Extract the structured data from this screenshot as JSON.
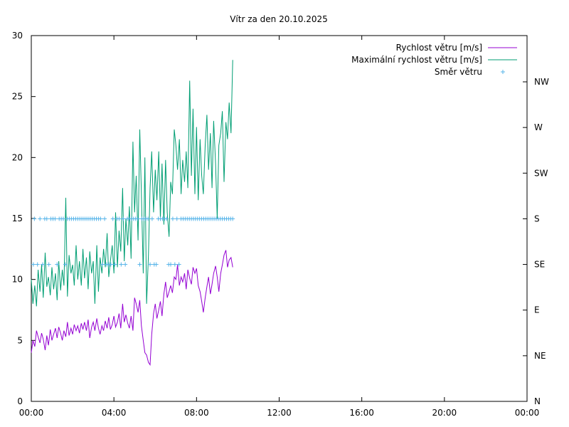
{
  "chart_data": {
    "type": "line",
    "title": "Vítr za den 20.10.2025",
    "x_ticks": [
      "00:00",
      "04:00",
      "08:00",
      "12:00",
      "16:00",
      "20:00",
      "00:00"
    ],
    "x_range_hours": [
      0,
      24
    ],
    "y_range": [
      0,
      30
    ],
    "y_ticks": [
      "0",
      "5",
      "10",
      "15",
      "20",
      "25",
      "30"
    ],
    "y2_ticks": [
      "N",
      "NE",
      "E",
      "SE",
      "S",
      "SW",
      "W",
      "NW"
    ],
    "legend_position": "top-right",
    "grid": false,
    "series": [
      {
        "name": "Rychlost větru [m/s]",
        "style": "line",
        "axis": "left",
        "color": "#9400d3",
        "x": [
          0.0,
          0.08,
          0.17,
          0.25,
          0.33,
          0.42,
          0.5,
          0.58,
          0.67,
          0.75,
          0.83,
          0.92,
          1.0,
          1.08,
          1.17,
          1.25,
          1.33,
          1.42,
          1.5,
          1.58,
          1.67,
          1.75,
          1.83,
          1.92,
          2.0,
          2.08,
          2.17,
          2.25,
          2.33,
          2.42,
          2.5,
          2.58,
          2.67,
          2.75,
          2.83,
          2.92,
          3.0,
          3.08,
          3.17,
          3.25,
          3.33,
          3.42,
          3.5,
          3.58,
          3.67,
          3.75,
          3.83,
          3.92,
          4.0,
          4.08,
          4.17,
          4.25,
          4.33,
          4.42,
          4.5,
          4.58,
          4.67,
          4.75,
          4.83,
          4.92,
          5.0,
          5.08,
          5.17,
          5.25,
          5.33,
          5.42,
          5.5,
          5.58,
          5.67,
          5.75,
          5.83,
          5.92,
          6.0,
          6.08,
          6.17,
          6.25,
          6.33,
          6.42,
          6.5,
          6.58,
          6.67,
          6.75,
          6.83,
          6.92,
          7.0,
          7.08,
          7.17,
          7.25,
          7.33,
          7.42,
          7.5,
          7.58,
          7.67,
          7.75,
          7.83,
          7.92,
          8.0,
          8.08,
          8.17,
          8.25,
          8.33,
          8.42,
          8.5,
          8.58,
          8.67,
          8.75,
          8.83,
          8.92,
          9.0,
          9.08,
          9.17,
          9.25,
          9.33,
          9.42,
          9.5,
          9.58,
          9.67,
          9.75
        ],
        "y": [
          4.0,
          5.0,
          4.5,
          5.8,
          5.3,
          4.8,
          5.6,
          5.1,
          4.2,
          5.4,
          4.6,
          5.9,
          5.0,
          5.5,
          6.0,
          5.2,
          6.1,
          5.6,
          5.0,
          5.8,
          5.3,
          6.5,
          5.4,
          6.0,
          5.5,
          6.3,
          5.8,
          6.2,
          5.6,
          6.4,
          5.9,
          6.5,
          5.8,
          6.7,
          5.2,
          6.1,
          6.5,
          5.8,
          6.8,
          6.0,
          5.5,
          6.2,
          5.8,
          6.6,
          6.0,
          6.9,
          5.9,
          6.3,
          7.0,
          6.1,
          6.5,
          7.2,
          6.0,
          8.0,
          6.5,
          7.1,
          6.4,
          6.0,
          7.0,
          5.8,
          8.5,
          8.0,
          7.3,
          8.3,
          6.2,
          5.0,
          4.0,
          3.8,
          3.2,
          3.0,
          5.5,
          7.2,
          8.0,
          6.8,
          7.5,
          8.2,
          7.0,
          8.8,
          9.8,
          8.5,
          9.0,
          9.5,
          8.9,
          10.2,
          10.0,
          11.2,
          9.5,
          10.2,
          9.8,
          10.5,
          9.2,
          10.8,
          10.1,
          9.6,
          11.0,
          10.5,
          10.9,
          9.5,
          9.0,
          8.2,
          7.3,
          8.5,
          9.4,
          10.2,
          8.8,
          9.6,
          10.5,
          11.1,
          10.2,
          9.0,
          10.5,
          11.2,
          12.0,
          12.4,
          11.0,
          11.6,
          11.8,
          11.0
        ]
      },
      {
        "name": "Maximální rychlost větru [m/s]",
        "style": "line",
        "axis": "left",
        "color": "#009e73",
        "x": [
          0.0,
          0.08,
          0.17,
          0.25,
          0.33,
          0.42,
          0.5,
          0.58,
          0.67,
          0.75,
          0.83,
          0.92,
          1.0,
          1.08,
          1.17,
          1.25,
          1.33,
          1.42,
          1.5,
          1.58,
          1.67,
          1.75,
          1.83,
          1.92,
          2.0,
          2.08,
          2.17,
          2.25,
          2.33,
          2.42,
          2.5,
          2.58,
          2.67,
          2.75,
          2.83,
          2.92,
          3.0,
          3.08,
          3.17,
          3.25,
          3.33,
          3.42,
          3.5,
          3.58,
          3.67,
          3.75,
          3.83,
          3.92,
          4.0,
          4.08,
          4.17,
          4.25,
          4.33,
          4.42,
          4.5,
          4.58,
          4.67,
          4.75,
          4.83,
          4.92,
          5.0,
          5.08,
          5.17,
          5.25,
          5.33,
          5.42,
          5.5,
          5.58,
          5.67,
          5.75,
          5.83,
          5.92,
          6.0,
          6.08,
          6.17,
          6.25,
          6.33,
          6.42,
          6.5,
          6.58,
          6.67,
          6.75,
          6.83,
          6.92,
          7.0,
          7.08,
          7.17,
          7.25,
          7.33,
          7.42,
          7.5,
          7.58,
          7.67,
          7.75,
          7.83,
          7.92,
          8.0,
          8.08,
          8.17,
          8.25,
          8.33,
          8.42,
          8.5,
          8.58,
          8.67,
          8.75,
          8.83,
          8.92,
          9.0,
          9.08,
          9.17,
          9.25,
          9.33,
          9.42,
          9.5,
          9.58,
          9.67,
          9.75
        ],
        "y": [
          10.0,
          8.0,
          9.5,
          7.8,
          10.8,
          9.0,
          11.2,
          8.5,
          12.2,
          9.4,
          10.2,
          8.7,
          11.0,
          9.2,
          10.5,
          8.3,
          11.5,
          9.1,
          10.8,
          9.5,
          16.7,
          8.6,
          12.0,
          10.5,
          11.2,
          9.5,
          12.8,
          10.0,
          11.5,
          9.5,
          12.5,
          10.1,
          11.8,
          9.2,
          12.3,
          10.5,
          11.5,
          8.0,
          12.8,
          9.0,
          11.8,
          10.5,
          12.5,
          11.0,
          13.8,
          10.2,
          11.5,
          12.8,
          10.5,
          15.5,
          11.0,
          14.0,
          12.3,
          17.5,
          11.5,
          15.0,
          12.8,
          16.0,
          11.7,
          21.3,
          15.5,
          18.5,
          13.2,
          22.3,
          17.0,
          10.5,
          20.0,
          8.0,
          12.0,
          17.5,
          20.5,
          15.5,
          19.0,
          16.5,
          20.5,
          15.0,
          19.5,
          14.5,
          19.8,
          15.5,
          13.5,
          18.0,
          17.0,
          22.3,
          21.0,
          19.0,
          21.5,
          17.0,
          19.8,
          18.0,
          20.5,
          17.5,
          26.3,
          18.5,
          24.0,
          17.0,
          22.5,
          16.5,
          21.5,
          18.5,
          17.0,
          21.0,
          23.5,
          19.0,
          22.0,
          17.5,
          23.0,
          19.5,
          15.0,
          21.0,
          22.0,
          23.8,
          18.0,
          22.9,
          21.5,
          24.5,
          22.0,
          28.0
        ]
      },
      {
        "name": "Směr větru",
        "style": "points",
        "axis": "right",
        "color": "#56b4e9",
        "categories_axis": [
          "N",
          "NE",
          "E",
          "SE",
          "S",
          "SW",
          "W",
          "NW"
        ],
        "points": [
          {
            "x": 0.1,
            "dir": "SE"
          },
          {
            "x": 0.15,
            "dir": "S"
          },
          {
            "x": 0.3,
            "dir": "SE"
          },
          {
            "x": 0.42,
            "dir": "S"
          },
          {
            "x": 0.55,
            "dir": "SE"
          },
          {
            "x": 0.65,
            "dir": "S"
          },
          {
            "x": 0.75,
            "dir": "S"
          },
          {
            "x": 0.85,
            "dir": "SE"
          },
          {
            "x": 0.95,
            "dir": "S"
          },
          {
            "x": 1.05,
            "dir": "S"
          },
          {
            "x": 1.15,
            "dir": "S"
          },
          {
            "x": 1.25,
            "dir": "SE"
          },
          {
            "x": 1.35,
            "dir": "S"
          },
          {
            "x": 1.45,
            "dir": "S"
          },
          {
            "x": 1.55,
            "dir": "S"
          },
          {
            "x": 1.65,
            "dir": "SE"
          },
          {
            "x": 1.75,
            "dir": "S"
          },
          {
            "x": 1.85,
            "dir": "S"
          },
          {
            "x": 1.95,
            "dir": "S"
          },
          {
            "x": 2.05,
            "dir": "S"
          },
          {
            "x": 2.15,
            "dir": "S"
          },
          {
            "x": 2.25,
            "dir": "S"
          },
          {
            "x": 2.35,
            "dir": "S"
          },
          {
            "x": 2.45,
            "dir": "S"
          },
          {
            "x": 2.55,
            "dir": "S"
          },
          {
            "x": 2.65,
            "dir": "S"
          },
          {
            "x": 2.75,
            "dir": "S"
          },
          {
            "x": 2.85,
            "dir": "S"
          },
          {
            "x": 2.95,
            "dir": "S"
          },
          {
            "x": 3.05,
            "dir": "S"
          },
          {
            "x": 3.15,
            "dir": "S"
          },
          {
            "x": 3.25,
            "dir": "S"
          },
          {
            "x": 3.35,
            "dir": "S"
          },
          {
            "x": 3.45,
            "dir": "SE"
          },
          {
            "x": 3.55,
            "dir": "S"
          },
          {
            "x": 3.65,
            "dir": "SE"
          },
          {
            "x": 3.75,
            "dir": "SE"
          },
          {
            "x": 3.85,
            "dir": "SE"
          },
          {
            "x": 3.95,
            "dir": "S"
          },
          {
            "x": 4.05,
            "dir": "SE"
          },
          {
            "x": 4.15,
            "dir": "S"
          },
          {
            "x": 4.25,
            "dir": "S"
          },
          {
            "x": 4.35,
            "dir": "SE"
          },
          {
            "x": 4.45,
            "dir": "S"
          },
          {
            "x": 4.55,
            "dir": "SE"
          },
          {
            "x": 4.65,
            "dir": "S"
          },
          {
            "x": 4.75,
            "dir": "S"
          },
          {
            "x": 4.85,
            "dir": "S"
          },
          {
            "x": 4.95,
            "dir": "S"
          },
          {
            "x": 5.05,
            "dir": "S"
          },
          {
            "x": 5.15,
            "dir": "S"
          },
          {
            "x": 5.25,
            "dir": "SE"
          },
          {
            "x": 5.35,
            "dir": "S"
          },
          {
            "x": 5.45,
            "dir": "S"
          },
          {
            "x": 5.55,
            "dir": "S"
          },
          {
            "x": 5.65,
            "dir": "S"
          },
          {
            "x": 5.75,
            "dir": "SE"
          },
          {
            "x": 5.85,
            "dir": "S"
          },
          {
            "x": 5.95,
            "dir": "SE"
          },
          {
            "x": 6.05,
            "dir": "SE"
          },
          {
            "x": 6.15,
            "dir": "S"
          },
          {
            "x": 6.25,
            "dir": "S"
          },
          {
            "x": 6.35,
            "dir": "S"
          },
          {
            "x": 6.45,
            "dir": "S"
          },
          {
            "x": 6.55,
            "dir": "S"
          },
          {
            "x": 6.65,
            "dir": "SE"
          },
          {
            "x": 6.75,
            "dir": "SE"
          },
          {
            "x": 6.85,
            "dir": "S"
          },
          {
            "x": 6.95,
            "dir": "SE"
          },
          {
            "x": 7.05,
            "dir": "S"
          },
          {
            "x": 7.15,
            "dir": "SE"
          },
          {
            "x": 7.25,
            "dir": "S"
          },
          {
            "x": 7.35,
            "dir": "S"
          },
          {
            "x": 7.45,
            "dir": "S"
          },
          {
            "x": 7.55,
            "dir": "S"
          },
          {
            "x": 7.65,
            "dir": "S"
          },
          {
            "x": 7.75,
            "dir": "S"
          },
          {
            "x": 7.85,
            "dir": "S"
          },
          {
            "x": 7.95,
            "dir": "S"
          },
          {
            "x": 8.05,
            "dir": "S"
          },
          {
            "x": 8.15,
            "dir": "S"
          },
          {
            "x": 8.25,
            "dir": "S"
          },
          {
            "x": 8.35,
            "dir": "S"
          },
          {
            "x": 8.45,
            "dir": "S"
          },
          {
            "x": 8.55,
            "dir": "S"
          },
          {
            "x": 8.65,
            "dir": "S"
          },
          {
            "x": 8.75,
            "dir": "S"
          },
          {
            "x": 8.85,
            "dir": "S"
          },
          {
            "x": 8.95,
            "dir": "S"
          },
          {
            "x": 9.05,
            "dir": "S"
          },
          {
            "x": 9.15,
            "dir": "S"
          },
          {
            "x": 9.25,
            "dir": "S"
          },
          {
            "x": 9.35,
            "dir": "S"
          },
          {
            "x": 9.45,
            "dir": "S"
          },
          {
            "x": 9.55,
            "dir": "S"
          },
          {
            "x": 9.65,
            "dir": "S"
          },
          {
            "x": 9.75,
            "dir": "S"
          }
        ]
      }
    ]
  }
}
